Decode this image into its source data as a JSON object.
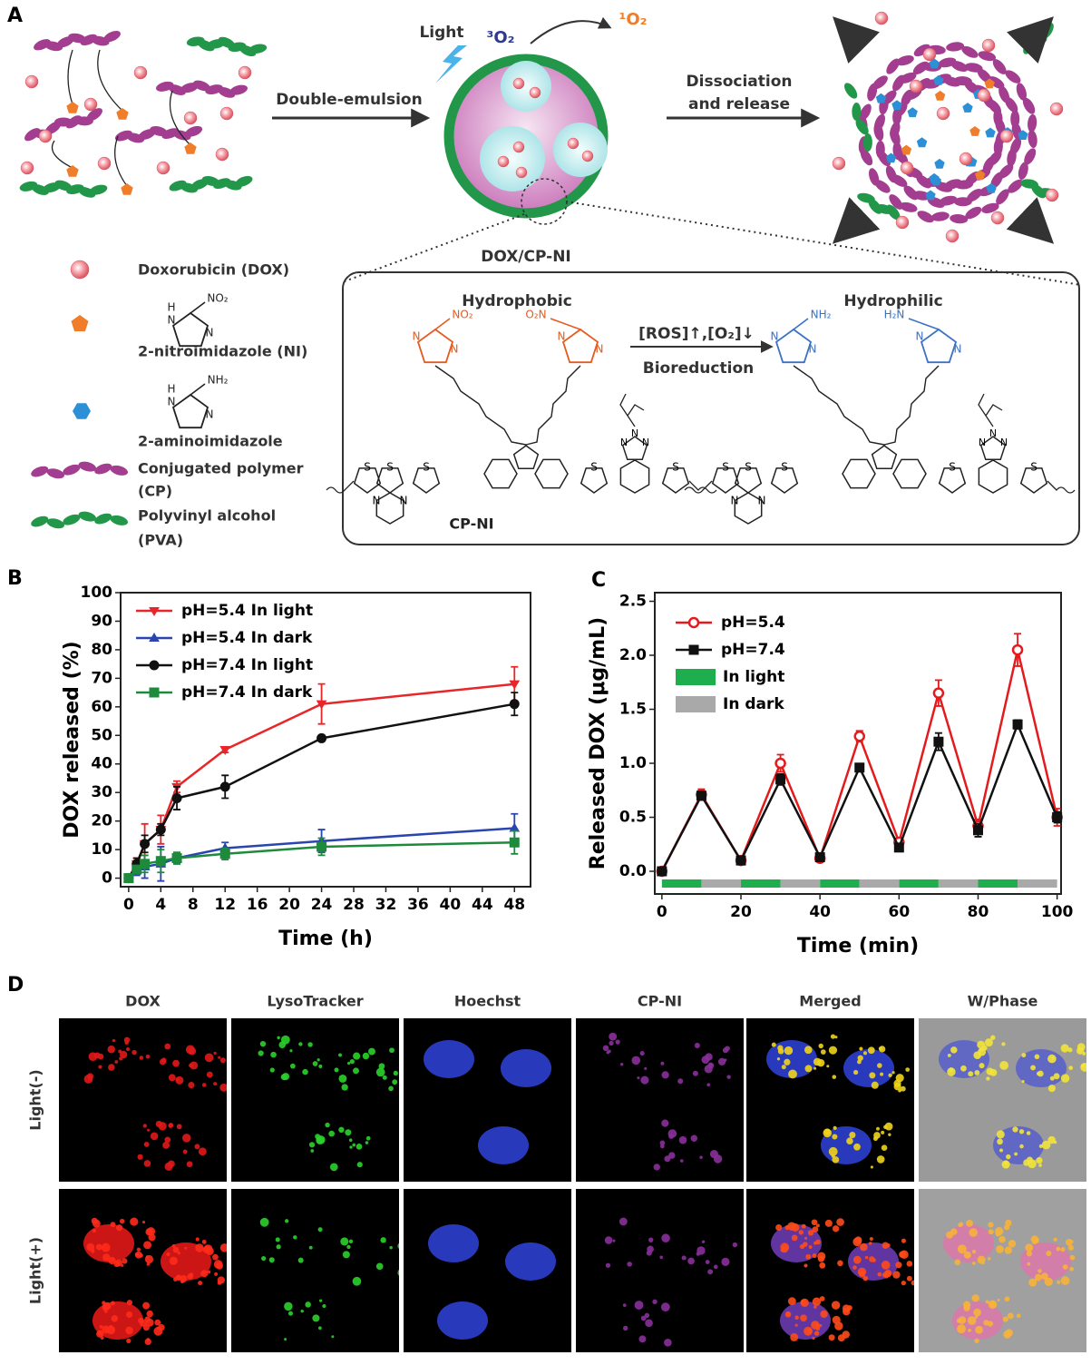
{
  "panel_a": {
    "label": "A",
    "light": "Light",
    "o2_triplet": "³O₂",
    "o2_singlet": "¹O₂",
    "double_emulsion": "Double-emulsion",
    "dissociation": [
      "Dissociation",
      "and release"
    ],
    "particle": "DOX/CP-NI",
    "legend": [
      [
        "Doxorubicin (DOX)"
      ],
      [
        "2-nitroimidazole (NI)"
      ],
      [
        "2-aminoimidazole"
      ],
      [
        "Conjugated polymer",
        "(CP)"
      ],
      [
        "Polyvinyl alcohol",
        "(PVA)"
      ]
    ],
    "inset": {
      "hydrophobic": "Hydrophobic",
      "hydrophilic": "Hydrophilic",
      "condition": "[ROS]↑,[O₂]↓",
      "process": "Bioreduction",
      "molecule": "CP-NI"
    },
    "atoms": {
      "N": "N",
      "S": "S",
      "H": "H",
      "nitro": "NO₂",
      "nitro_left": "O₂N",
      "amino": "NH₂",
      "amino_left": "H₂N"
    }
  },
  "chart_data": [
    {
      "type": "line",
      "panel_label": "B",
      "xlabel": "Time (h)",
      "ylabel": "DOX released (%)",
      "x": [
        0,
        1,
        2,
        4,
        6,
        12,
        24,
        48
      ],
      "xlim": [
        -1,
        50
      ],
      "xticks": [
        0,
        4,
        8,
        12,
        16,
        20,
        24,
        28,
        32,
        36,
        40,
        44,
        48
      ],
      "ylim": [
        -3,
        100
      ],
      "yticks": [
        0,
        10,
        20,
        30,
        40,
        50,
        60,
        70,
        80,
        90,
        100
      ],
      "legend": "upper left",
      "series": [
        {
          "name": "pH=5.4 In light",
          "color": "#e8262a",
          "marker": "triangle-down",
          "values": [
            0,
            5,
            12,
            17,
            32,
            45,
            61,
            68
          ],
          "errors": [
            1,
            2,
            7,
            5,
            2,
            1,
            7,
            6
          ]
        },
        {
          "name": "pH=5.4 In dark",
          "color": "#2a45b0",
          "marker": "triangle-up",
          "values": [
            0,
            3,
            4,
            5,
            7,
            10.5,
            13,
            17.5
          ],
          "errors": [
            1,
            2,
            4,
            6,
            2,
            2,
            4,
            5
          ]
        },
        {
          "name": "pH=7.4 In light",
          "color": "#111111",
          "marker": "circle",
          "values": [
            0,
            5,
            12,
            17,
            28,
            32,
            49,
            61
          ],
          "errors": [
            1,
            2,
            3,
            2,
            4,
            4,
            1,
            4
          ]
        },
        {
          "name": "pH=7.4 In dark",
          "color": "#1d8a3c",
          "marker": "square",
          "values": [
            0,
            3,
            5,
            6,
            7,
            8.5,
            11,
            12.5
          ],
          "errors": [
            1,
            1,
            3,
            4,
            2,
            2,
            3,
            4
          ]
        }
      ]
    },
    {
      "type": "line",
      "panel_label": "C",
      "xlabel": "Time (min)",
      "ylabel": "Released DOX (μg/mL)",
      "x": [
        0,
        10,
        20,
        30,
        40,
        50,
        60,
        70,
        80,
        90,
        100
      ],
      "xlim": [
        -1.8,
        101
      ],
      "xticks": [
        0,
        20,
        40,
        60,
        80,
        100
      ],
      "ylim": [
        -0.21,
        2.58
      ],
      "yticks": [
        {
          "value": 0,
          "label": "0.0"
        },
        0.5,
        {
          "value": 1,
          "label": "1.0"
        },
        1.5,
        {
          "value": 2,
          "label": "2.0"
        },
        2.5
      ],
      "legend": "upper left",
      "series": [
        {
          "name": "pH=5.4",
          "color": "#e41a1c",
          "marker": "open-circle",
          "values": [
            0,
            0.71,
            0.1,
            1.0,
            0.12,
            1.25,
            0.27,
            1.65,
            0.42,
            2.05,
            0.5
          ],
          "errors": [
            0.02,
            0.05,
            0.03,
            0.08,
            0.03,
            0.05,
            0.03,
            0.12,
            0.06,
            0.15,
            0.08
          ]
        },
        {
          "name": "pH=7.4",
          "color": "#111111",
          "marker": "square",
          "values": [
            0,
            0.7,
            0.1,
            0.85,
            0.13,
            0.96,
            0.22,
            1.2,
            0.38,
            1.36,
            0.5
          ],
          "errors": [
            0.02,
            0.04,
            0.03,
            0.05,
            0.03,
            0.03,
            0.03,
            0.08,
            0.06,
            0.04,
            0.05
          ]
        }
      ],
      "intervals": [
        {
          "name": "In light",
          "color": "#1fae4e",
          "ranges": [
            [
              0,
              10
            ],
            [
              20,
              30
            ],
            [
              40,
              50
            ],
            [
              60,
              70
            ],
            [
              80,
              90
            ]
          ]
        },
        {
          "name": "In dark",
          "color": "#a9a9a9",
          "ranges": [
            [
              10,
              20
            ],
            [
              30,
              40
            ],
            [
              50,
              60
            ],
            [
              70,
              80
            ],
            [
              90,
              100
            ]
          ]
        }
      ]
    }
  ],
  "panel_d": {
    "label": "D",
    "columns": [
      "DOX",
      "LysoTracker",
      "Hoechst",
      "CP-NI",
      "Merged",
      "W/Phase"
    ],
    "rows": [
      "Light(-)",
      "Light(+)"
    ]
  }
}
